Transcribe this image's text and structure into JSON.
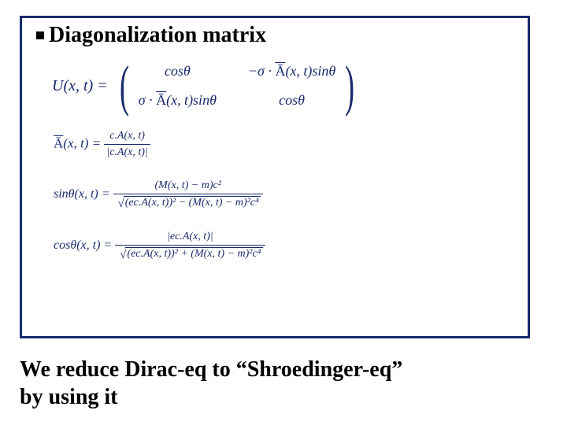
{
  "colors": {
    "border": "#1a2a6c",
    "equation": "#1a2a6c",
    "text": "#000000",
    "background": "#ffffff"
  },
  "title": "Diagonalization matrix",
  "eq1": {
    "lhs": "U(x, t) = ",
    "m11": "cosθ",
    "m12_prefix": "−σ · ",
    "m12_A": "Ā",
    "m12_suffix": "(x, t)sinθ",
    "m21_prefix": "σ · ",
    "m21_A": "Ā",
    "m21_suffix": "(x, t)sinθ",
    "m22": "cosθ"
  },
  "eq2": {
    "lhs_A": "Ā",
    "lhs_suffix": "(x, t) = ",
    "num": "c.A(x, t)",
    "den": "|c.A(x, t)|"
  },
  "eq3": {
    "lhs": "sinθ(x, t) = ",
    "num": "(M(x, t) − m)c²",
    "den_inside": "(ec.A(x, t))² − (M(x, t) − m)²c⁴"
  },
  "eq4": {
    "lhs": "cosθ(x, t) = ",
    "num": "|ec.A(x, t)|",
    "den_inside": "(ec.A(x, t))² + (M(x, t) − m)²c⁴"
  },
  "footer": {
    "line1": "We reduce Dirac-eq to “Shroedinger-eq”",
    "line2": "by using it"
  }
}
